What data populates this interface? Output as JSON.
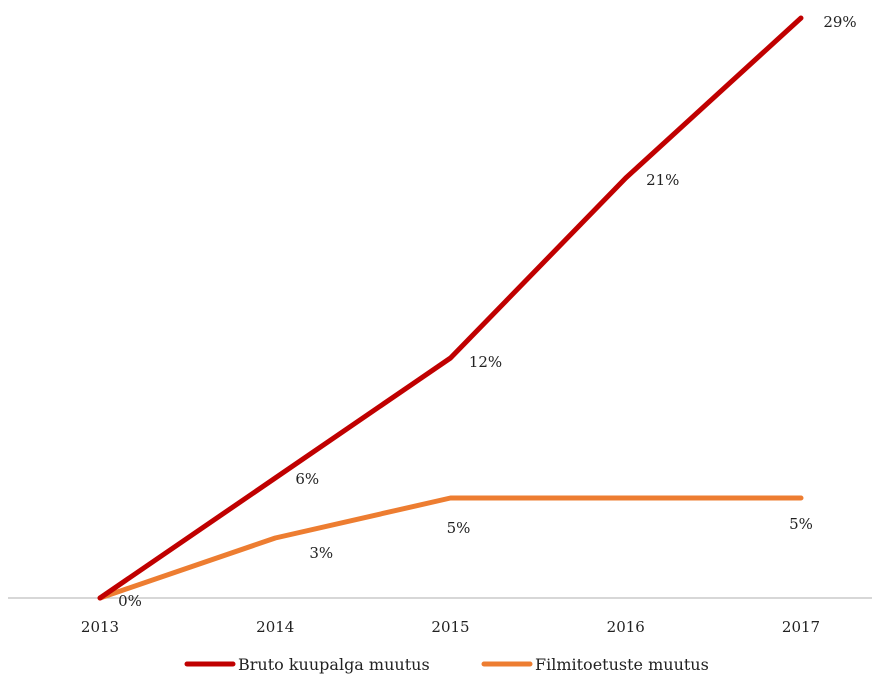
{
  "chart_data": {
    "type": "line",
    "categories": [
      "2013",
      "2014",
      "2015",
      "2016",
      "2017"
    ],
    "series": [
      {
        "name": "Bruto kuupalga muutus",
        "values": [
          0,
          6,
          12,
          21,
          29
        ],
        "labels": [
          "0%",
          "6%",
          "12%",
          "21%",
          "29%"
        ],
        "color": "#c00000"
      },
      {
        "name": "Filmitoetuste muutus",
        "values": [
          0,
          3,
          5,
          5,
          5
        ],
        "labels": [
          "",
          "3%",
          "5%",
          "",
          "5%"
        ],
        "color": "#ed7d31"
      }
    ],
    "ylim": [
      0,
      29
    ],
    "grid": false,
    "legend_position": "bottom",
    "axis_color": "#bfbfbf"
  }
}
